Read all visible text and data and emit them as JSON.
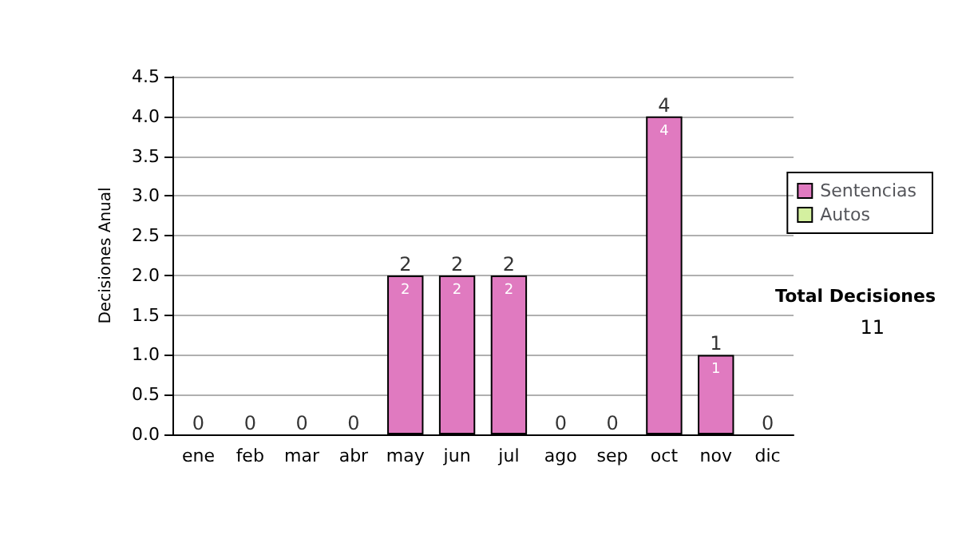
{
  "chart_data": {
    "type": "bar",
    "stacked": true,
    "ylabel": "Decisiones Anual",
    "categories": [
      "ene",
      "feb",
      "mar",
      "abr",
      "may",
      "jun",
      "jul",
      "ago",
      "sep",
      "oct",
      "nov",
      "dic"
    ],
    "series": [
      {
        "name": "Sentencias",
        "color": "#e07ac0",
        "values": [
          0,
          0,
          0,
          0,
          2,
          2,
          2,
          0,
          0,
          4,
          1,
          0
        ],
        "value_labels": [
          null,
          null,
          null,
          null,
          "2",
          "2",
          "2",
          null,
          null,
          "4",
          "1",
          null
        ]
      },
      {
        "name": "Autos",
        "color": "#d4f0a0",
        "values": [
          0,
          0,
          0,
          0,
          0,
          0,
          0,
          0,
          0,
          0,
          0,
          0
        ]
      }
    ],
    "totals": [
      "0",
      "0",
      "0",
      "0",
      "2",
      "2",
      "2",
      "0",
      "0",
      "4",
      "1",
      "0"
    ],
    "ylim": [
      0,
      4.5
    ],
    "yticks": [
      {
        "value": 0,
        "label": "0.0"
      },
      {
        "value": 0.5,
        "label": "0.5"
      },
      {
        "value": 1,
        "label": "1.0"
      },
      {
        "value": 1.5,
        "label": "1.5"
      },
      {
        "value": 2,
        "label": "2.0"
      },
      {
        "value": 2.5,
        "label": "2.5"
      },
      {
        "value": 3,
        "label": "3.0"
      },
      {
        "value": 3.5,
        "label": "3.5"
      },
      {
        "value": 4,
        "label": "4.0"
      },
      {
        "value": 4.5,
        "label": "4.5"
      }
    ],
    "grid": "y",
    "legend": "right",
    "annotations": [
      "Total Decisiones",
      "11"
    ]
  }
}
